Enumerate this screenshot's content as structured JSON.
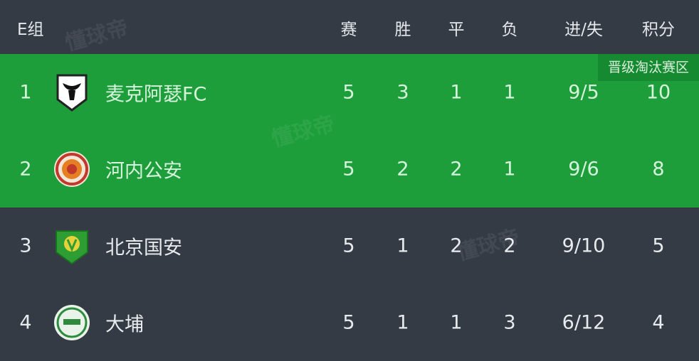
{
  "header": {
    "group": "E组",
    "cols": [
      "赛",
      "胜",
      "平",
      "负",
      "进/失",
      "积分"
    ]
  },
  "zone_label": "晋级淘汰赛区",
  "colors": {
    "background": "#353b45",
    "qualify": "#1e9e3b",
    "zone_badge": "#168a30"
  },
  "watermark": "懂球帝",
  "rows": [
    {
      "rank": "1",
      "name": "麦克阿瑟FC",
      "logo": "bull-shield-logo",
      "played": "5",
      "won": "3",
      "drawn": "1",
      "lost": "1",
      "goals": "9/5",
      "points": "10",
      "qualify": true
    },
    {
      "rank": "2",
      "name": "河内公安",
      "logo": "round-orange-crest-logo",
      "played": "5",
      "won": "2",
      "drawn": "2",
      "lost": "1",
      "goals": "9/6",
      "points": "8",
      "qualify": true
    },
    {
      "rank": "3",
      "name": "北京国安",
      "logo": "green-shield-logo",
      "played": "5",
      "won": "1",
      "drawn": "2",
      "lost": "2",
      "goals": "9/10",
      "points": "5",
      "qualify": false
    },
    {
      "rank": "4",
      "name": "大埔",
      "logo": "round-green-crest-logo",
      "played": "5",
      "won": "1",
      "drawn": "1",
      "lost": "3",
      "goals": "6/12",
      "points": "4",
      "qualify": false
    }
  ]
}
